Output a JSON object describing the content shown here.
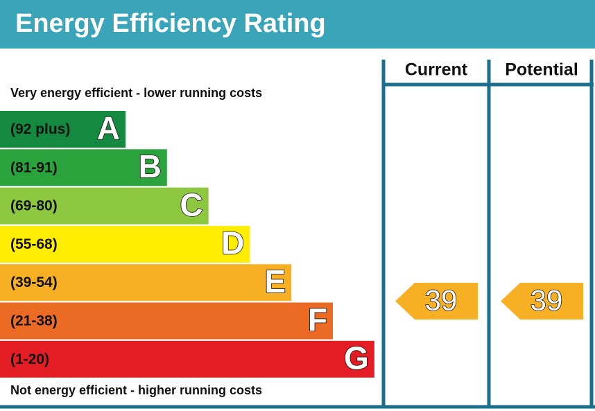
{
  "title": "Energy Efficiency Rating",
  "top_label": "Very energy efficient - lower running costs",
  "bottom_label": "Not energy efficient - higher running costs",
  "bands": [
    {
      "range": "(92 plus)",
      "letter": "A",
      "color": "#138a3f"
    },
    {
      "range": "(81-91)",
      "letter": "B",
      "color": "#2aa33c"
    },
    {
      "range": "(69-80)",
      "letter": "C",
      "color": "#8dc63f"
    },
    {
      "range": "(55-68)",
      "letter": "D",
      "color": "#ffed00"
    },
    {
      "range": "(39-54)",
      "letter": "E",
      "color": "#f7b024"
    },
    {
      "range": "(21-38)",
      "letter": "F",
      "color": "#ec6b24"
    },
    {
      "range": "(1-20)",
      "letter": "G",
      "color": "#e31d23"
    }
  ],
  "columns": [
    {
      "header": "Current",
      "rating": "39"
    },
    {
      "header": "Potential",
      "rating": "39"
    }
  ]
}
